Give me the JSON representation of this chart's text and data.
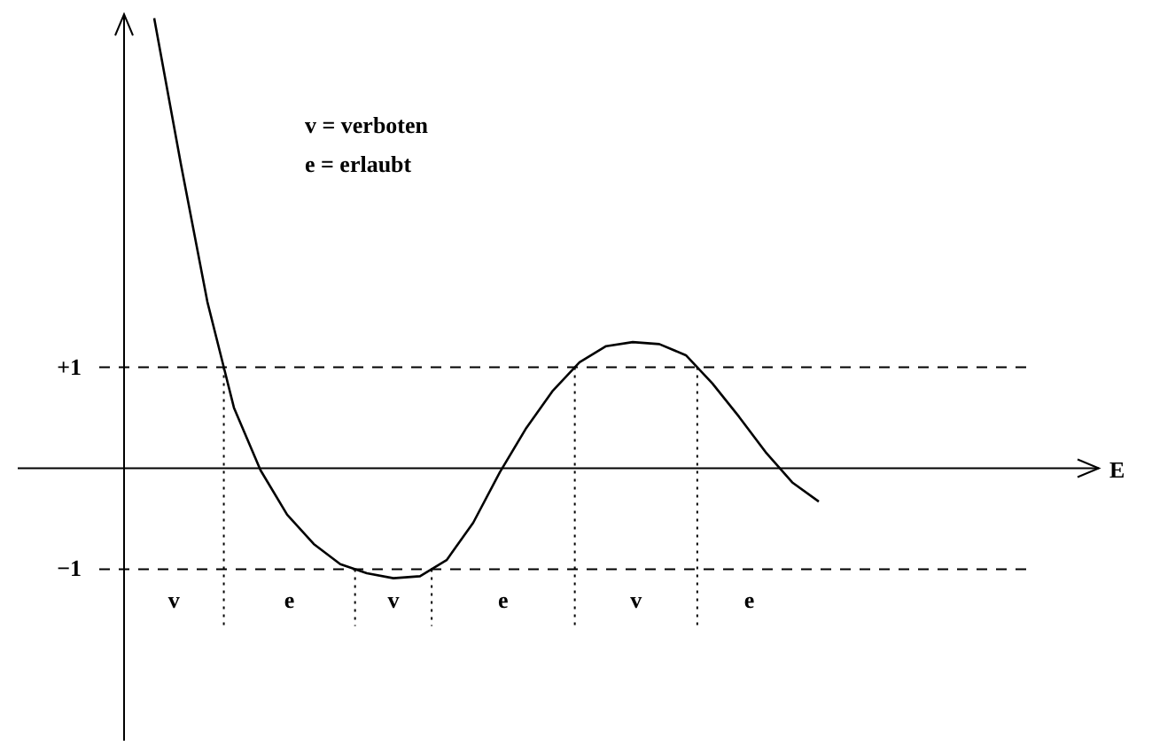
{
  "chart_data": {
    "type": "line",
    "categories": [
      null,
      null,
      null,
      null,
      null,
      null,
      null,
      null,
      null,
      null,
      null,
      null,
      null,
      null,
      null,
      null,
      null,
      null,
      null,
      null,
      null,
      null,
      null,
      null,
      null,
      null
    ],
    "series": [
      {
        "color": "#000000",
        "values": [
          4.46,
          3.02,
          1.65,
          0.6,
          -0.02,
          -0.46,
          -0.75,
          -0.95,
          -1.04,
          -1.09,
          -1.07,
          -0.91,
          -0.54,
          -0.04,
          0.4,
          0.77,
          1.05,
          1.21,
          1.25,
          1.23,
          1.12,
          0.84,
          0.51,
          0.16,
          -0.14,
          -0.33
        ]
      }
    ],
    "ylim": [
      -2.7,
      4.5
    ],
    "yticks": [
      {
        "value": 1,
        "label": "+1"
      },
      {
        "value": -1,
        "label": "−1"
      }
    ],
    "tick_labels": "y",
    "marker": "none",
    "line_style": "solid",
    "ref_lines": [
      {
        "axis": "y",
        "value": 1,
        "line_style": "dashed"
      },
      {
        "axis": "y",
        "value": -1,
        "line_style": "dashed"
      }
    ],
    "annotations": [
      "E",
      "v = verboten",
      "e = erlaubt",
      "v",
      "e",
      "v",
      "e",
      "v",
      "e"
    ]
  }
}
